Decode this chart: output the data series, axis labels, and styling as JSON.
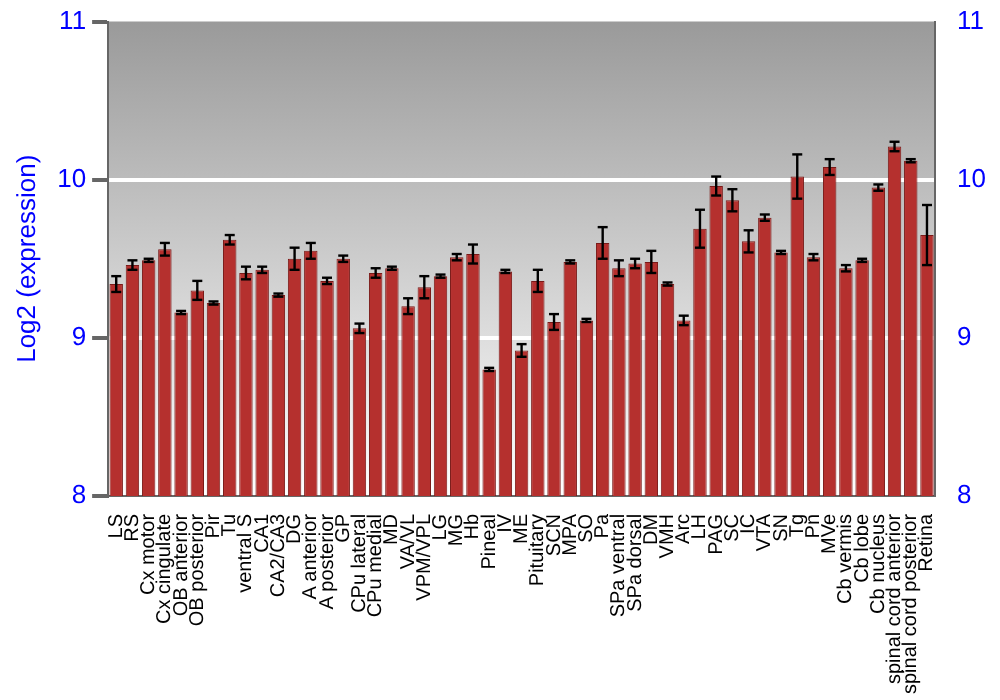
{
  "chart_data": {
    "type": "bar",
    "ylabel": "Log2 (expression)",
    "categories": [
      "LS",
      "RS",
      "Cx motor",
      "Cx cingulate",
      "OB anterior",
      "OB posterior",
      "Pir",
      "Tu",
      "ventral S",
      "CA1",
      "CA2/CA3",
      "DG",
      "A anterior",
      "A posterior",
      "GP",
      "CPu lateral",
      "CPu medial",
      "MD",
      "VA/VL",
      "VPM/VPL",
      "LG",
      "MG",
      "Hb",
      "Pineal",
      "IV",
      "ME",
      "Pituitary",
      "SCN",
      "MPA",
      "SO",
      "Pa",
      "SPa ventral",
      "SPa dorsal",
      "DM",
      "VMH",
      "Arc",
      "LH",
      "PAG",
      "SC",
      "IC",
      "VTA",
      "SN",
      "Tg",
      "Pn",
      "MVe",
      "Cb vermis",
      "Cb lobe",
      "Cb nucleus",
      "spinal cord anterior",
      "spinal cord posterior",
      "Retina"
    ],
    "values": [
      9.34,
      9.46,
      9.49,
      9.56,
      9.16,
      9.3,
      9.22,
      9.62,
      9.41,
      9.43,
      9.27,
      9.5,
      9.55,
      9.36,
      9.5,
      9.06,
      9.41,
      9.44,
      9.2,
      9.32,
      9.39,
      9.51,
      9.53,
      8.8,
      9.42,
      8.92,
      9.36,
      9.1,
      9.48,
      9.11,
      9.6,
      9.44,
      9.47,
      9.48,
      9.34,
      9.11,
      9.69,
      9.96,
      9.87,
      9.61,
      9.76,
      9.54,
      10.02,
      9.51,
      10.08,
      9.44,
      9.49,
      9.95,
      10.21,
      10.12,
      9.65
    ],
    "errors": [
      0.05,
      0.03,
      0.01,
      0.04,
      0.01,
      0.06,
      0.01,
      0.03,
      0.04,
      0.02,
      0.01,
      0.07,
      0.05,
      0.02,
      0.02,
      0.03,
      0.03,
      0.01,
      0.05,
      0.07,
      0.01,
      0.02,
      0.06,
      0.01,
      0.01,
      0.04,
      0.07,
      0.05,
      0.01,
      0.01,
      0.1,
      0.05,
      0.03,
      0.07,
      0.01,
      0.03,
      0.12,
      0.06,
      0.07,
      0.07,
      0.02,
      0.01,
      0.14,
      0.02,
      0.05,
      0.02,
      0.01,
      0.02,
      0.03,
      0.01,
      0.19
    ],
    "color": "#b5302e",
    "ylim": [
      8,
      11
    ],
    "yticks": [
      8,
      9,
      10,
      11
    ],
    "y2lim": [
      8,
      11
    ],
    "y2ticks": [
      8,
      9,
      10,
      11
    ],
    "grid": "y"
  }
}
